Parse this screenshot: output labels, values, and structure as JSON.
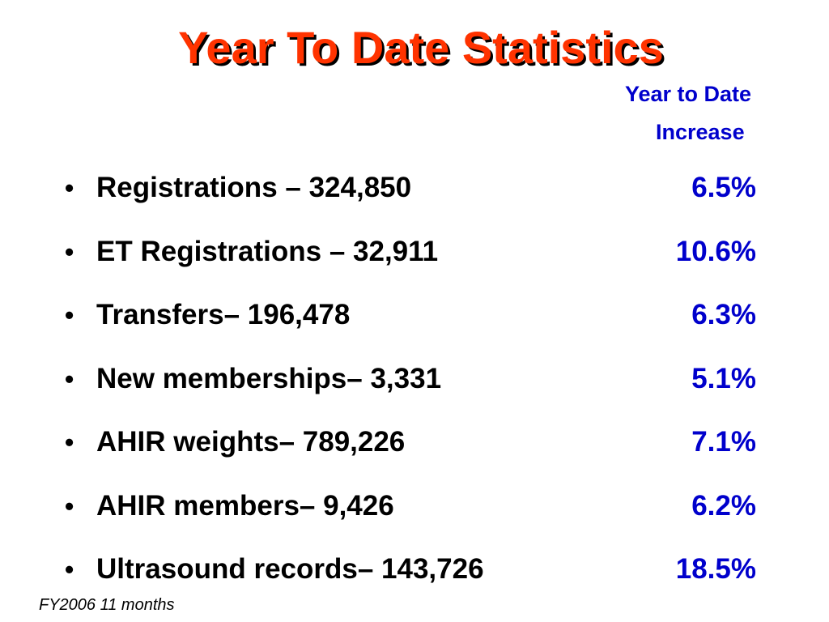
{
  "title": "Year To Date Statistics",
  "column_header": {
    "line1": "Year to Date",
    "line2": "Increase"
  },
  "stats": [
    {
      "label": "Registrations – 324,850",
      "value": "6.5%"
    },
    {
      "label": "ET Registrations – 32,911",
      "value": "10.6%"
    },
    {
      "label": "Transfers– 196,478",
      "value": "6.3%"
    },
    {
      "label": "New memberships– 3,331",
      "value": "5.1%"
    },
    {
      "label": "AHIR weights– 789,226",
      "value": "7.1%"
    },
    {
      "label": "AHIR members– 9,426",
      "value": "6.2%"
    },
    {
      "label": "Ultrasound records– 143,726",
      "value": "18.5%"
    }
  ],
  "bullet_symbol": "•",
  "footnote": "FY2006 11 months",
  "colors": {
    "title": "#ff3300",
    "title_shadow": "#000000",
    "value_text": "#0000cc",
    "body_text": "#000000",
    "background": "#ffffff"
  }
}
